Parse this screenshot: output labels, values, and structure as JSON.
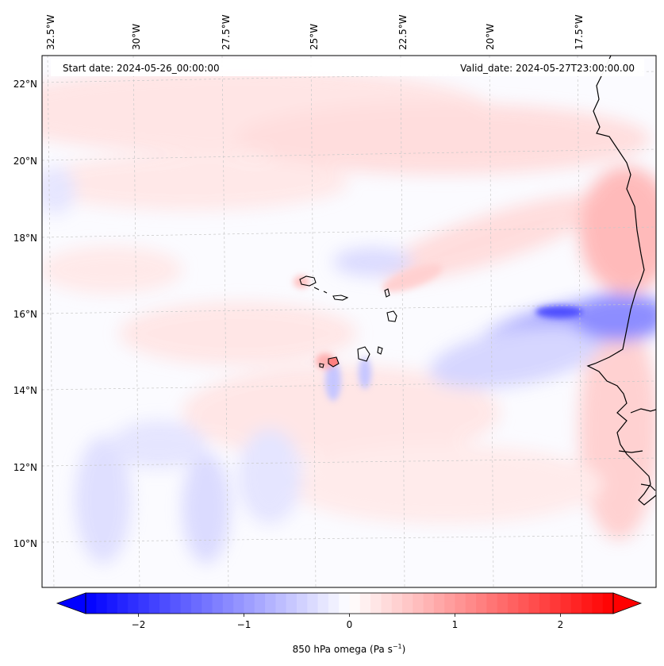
{
  "header": {
    "start_date": "Start date: 2024-05-26_00:00:00",
    "valid_date": "Valid_date: 2024-05-27T23:00:00.00"
  },
  "map": {
    "lon_labels": [
      "32.5°W",
      "30°W",
      "27.5°W",
      "25°W",
      "22.5°W",
      "20°W",
      "17.5°W"
    ],
    "lat_labels": [
      "22°N",
      "20°N",
      "18°N",
      "16°N",
      "14°N",
      "12°N",
      "10°N"
    ],
    "coast_color": "#000000",
    "grid_color": "#c8c8c8"
  },
  "colorbar": {
    "title": "850 hPa omega (Pa s",
    "title_exponent": "−1",
    "title_close": ")",
    "tick_labels": [
      "−2",
      "−1",
      "0",
      "1",
      "2"
    ],
    "tick_values": [
      -2,
      -1,
      0,
      1,
      2
    ],
    "vmin": -2.5,
    "vmax": 2.5,
    "low_color": "#0000ff",
    "high_color": "#ff0000"
  }
}
